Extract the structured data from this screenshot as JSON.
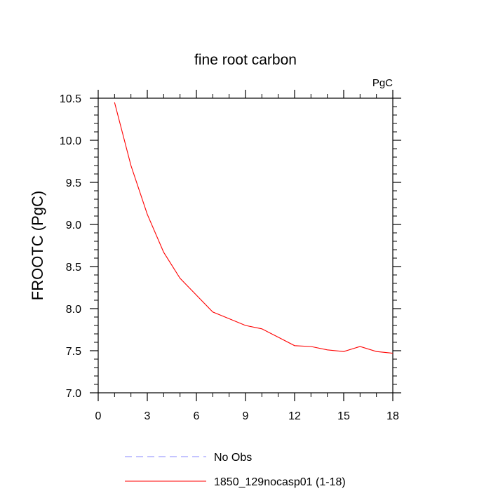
{
  "chart_data": {
    "type": "line",
    "title": "fine root carbon",
    "units_label": "PgC",
    "ylabel": "FROOTC  (PgC)",
    "xlabel": "",
    "xlim": [
      0,
      18
    ],
    "ylim": [
      7.0,
      10.5
    ],
    "x_ticks": [
      0,
      3,
      6,
      9,
      12,
      15,
      18
    ],
    "y_ticks": [
      7.0,
      7.5,
      8.0,
      8.5,
      9.0,
      9.5,
      10.0,
      10.5
    ],
    "x_tick_labels": [
      "0",
      "3",
      "6",
      "9",
      "12",
      "15",
      "18"
    ],
    "y_tick_labels": [
      "7.0",
      "7.5",
      "8.0",
      "8.5",
      "9.0",
      "9.5",
      "10.0",
      "10.5"
    ],
    "grid": false,
    "legend_position": "bottom",
    "series": [
      {
        "name": "1850_129nocasp01 (1-18)",
        "color": "#ff0000",
        "dash": "solid",
        "x": [
          1,
          2,
          3,
          4,
          5,
          6,
          7,
          8,
          9,
          10,
          11,
          12,
          13,
          14,
          15,
          16,
          17,
          18
        ],
        "y": [
          10.45,
          9.7,
          9.12,
          8.67,
          8.36,
          8.16,
          7.96,
          7.88,
          7.8,
          7.76,
          7.66,
          7.56,
          7.55,
          7.51,
          7.49,
          7.55,
          7.49,
          7.47
        ]
      }
    ],
    "legend": [
      {
        "label": "No Obs",
        "color": "#8888ff",
        "dash": "dashed"
      },
      {
        "label": "1850_129nocasp01 (1-18)",
        "color": "#ff0000",
        "dash": "solid"
      }
    ]
  }
}
